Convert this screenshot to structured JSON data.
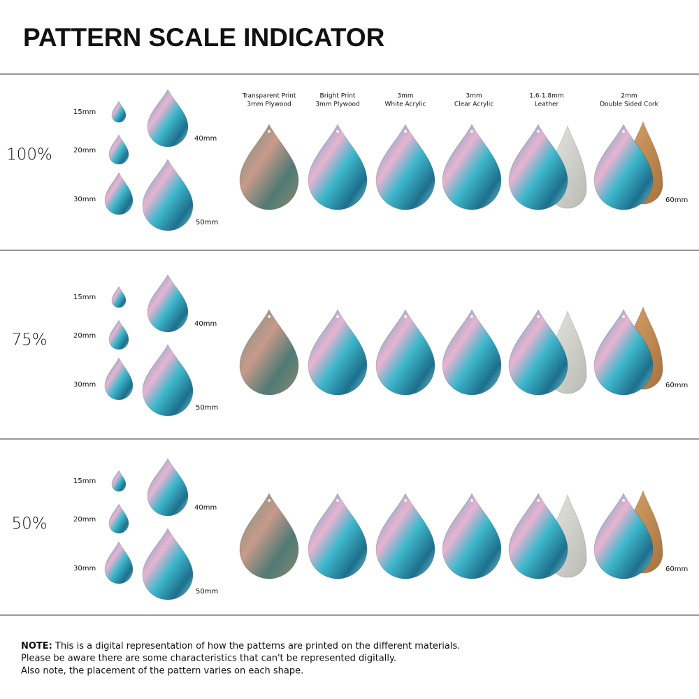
{
  "title": "PATTERN SCALE INDICATOR",
  "materials": [
    {
      "line1": "Transparent Print",
      "line2": "3mm Plywood"
    },
    {
      "line1": "Bright Print",
      "line2": "3mm Plywood"
    },
    {
      "line1": "3mm",
      "line2": "White Acrylic"
    },
    {
      "line1": "3mm",
      "line2": "Clear Acrylic"
    },
    {
      "line1": "1.6-1.8mm",
      "line2": "Leather"
    },
    {
      "line1": "2mm",
      "line2": "Double Sided Cork"
    }
  ],
  "sections": [
    {
      "scale": "100%",
      "sizes": [
        "15mm",
        "20mm",
        "30mm",
        "40mm",
        "50mm"
      ],
      "large_size": "60mm"
    },
    {
      "scale": "75%",
      "sizes": [
        "15mm",
        "20mm",
        "30mm",
        "40mm",
        "50mm"
      ],
      "large_size": "60mm"
    },
    {
      "scale": "50%",
      "sizes": [
        "15mm",
        "20mm",
        "30mm",
        "40mm",
        "50mm"
      ],
      "large_size": "60mm"
    }
  ],
  "note": {
    "label": "NOTE:",
    "lines": [
      "This is a digital representation of how the patterns are printed on the different materials.",
      "Please be aware there are some characteristics that can't be represented digitally.",
      "Also note, the placement of the pattern varies on each shape."
    ]
  }
}
